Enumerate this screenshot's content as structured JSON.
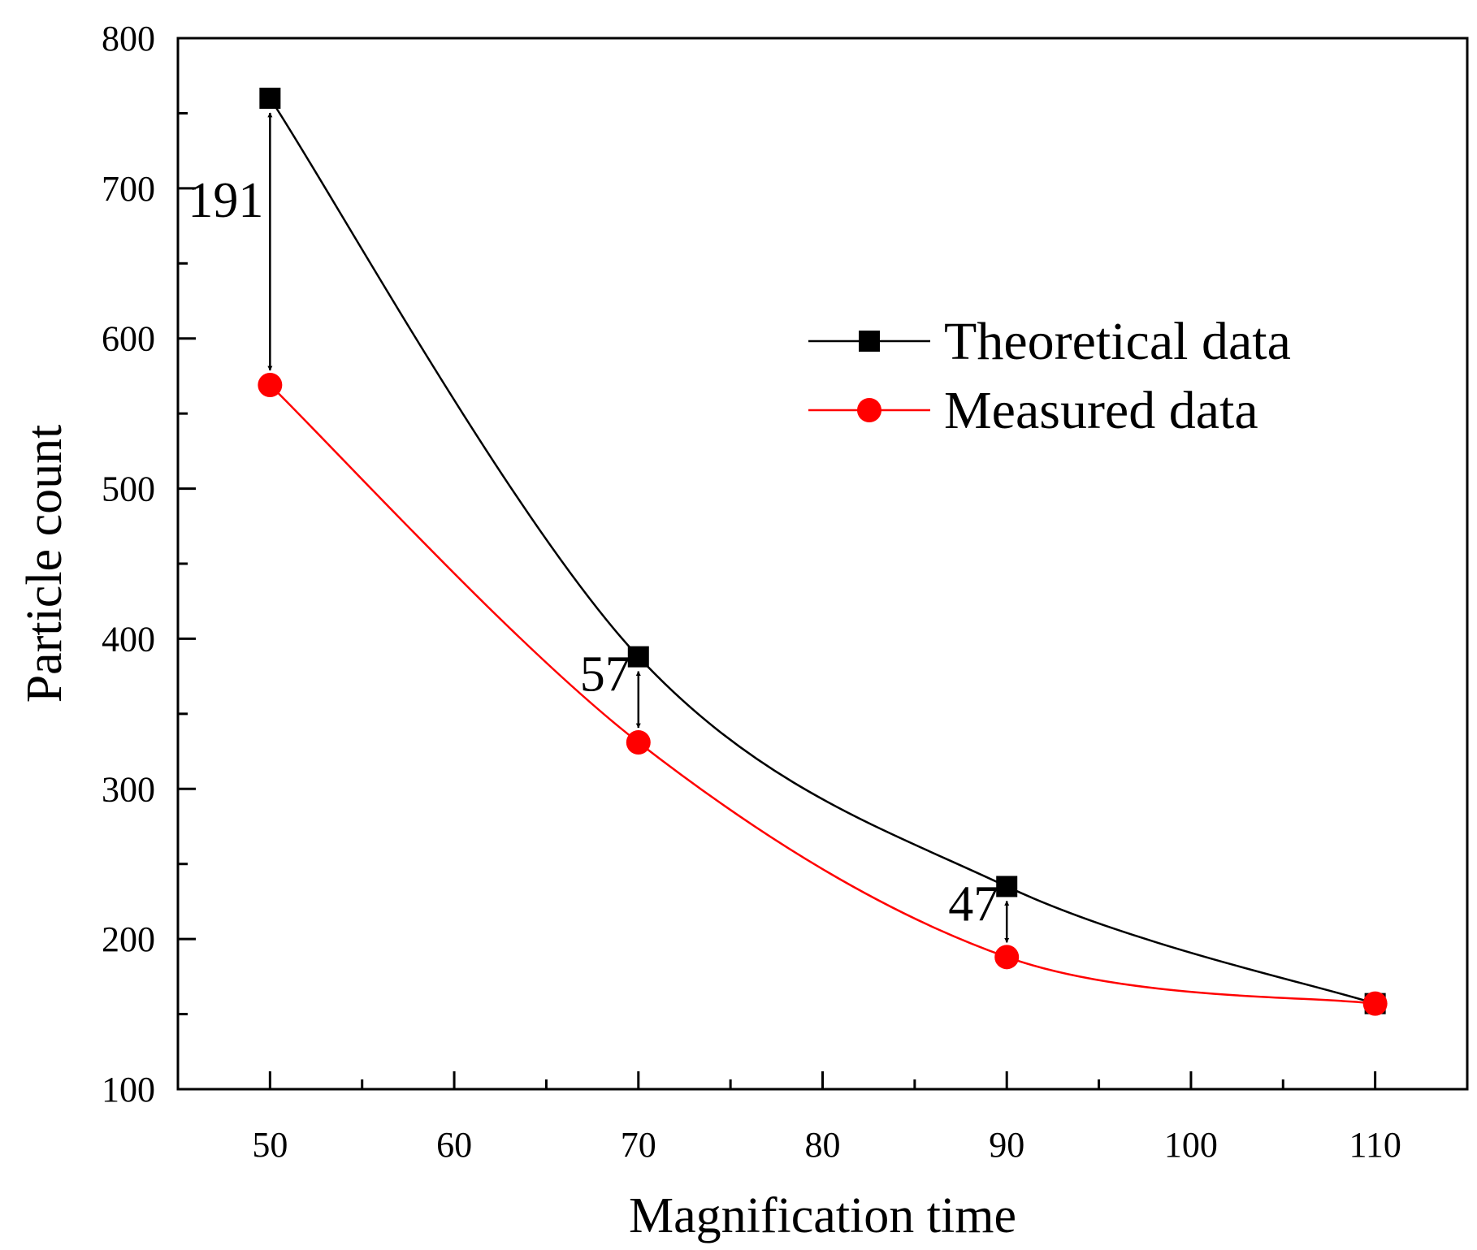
{
  "chart_data": {
    "type": "line",
    "title": "",
    "xlabel": "Magnification time",
    "ylabel": "Particle count",
    "xlim": [
      45,
      115
    ],
    "ylim": [
      100,
      800
    ],
    "xticks": [
      50,
      60,
      70,
      80,
      90,
      100,
      110
    ],
    "yticks": [
      100,
      200,
      300,
      400,
      500,
      600,
      700,
      800
    ],
    "grid": false,
    "legend_position": "top-right",
    "series": [
      {
        "name": "Theoretical data",
        "marker": "square",
        "color": "#000000",
        "x": [
          50,
          70,
          90,
          110
        ],
        "y": [
          760,
          388,
          235,
          157
        ]
      },
      {
        "name": "Measured data",
        "marker": "circle",
        "color": "#ff0000",
        "x": [
          50,
          70,
          90,
          110
        ],
        "y": [
          569,
          331,
          188,
          157
        ]
      }
    ],
    "annotations": [
      {
        "text": "191",
        "x": 50,
        "y_top": 760,
        "y_bottom": 569
      },
      {
        "text": "57",
        "x": 70,
        "y_top": 388,
        "y_bottom": 331
      },
      {
        "text": "47",
        "x": 90,
        "y_top": 235,
        "y_bottom": 188
      }
    ]
  }
}
